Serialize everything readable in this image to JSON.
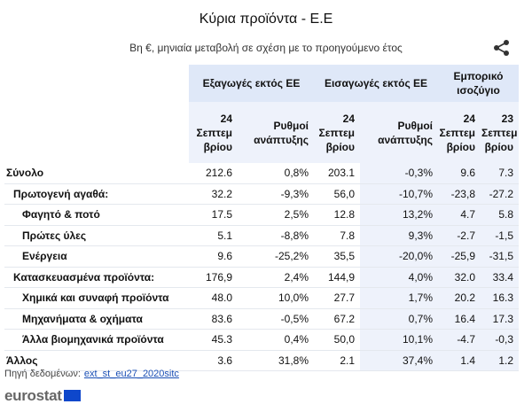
{
  "title": "Κύρια προϊόντα - Ε.Ε",
  "subtitle": "Βη €, μηνιαία μεταβολή σε σχέση με το προηγούμενο έτος",
  "share_icon": "share-icon",
  "headers": {
    "exports": "Εξαγωγές εκτός ΕΕ",
    "imports": "Εισαγωγές εκτός ΕΕ",
    "balance": "Εμπορικό ισοζύγιο",
    "sep24": "24 Σεπτεμ βρίου",
    "growth": "Ρυθμοί ανάπτυξης",
    "sep23": "23 Σεπτεμ βρίου"
  },
  "rows": [
    {
      "label": "Σύνολο",
      "level": 0,
      "values": [
        "212.6",
        "0,8%",
        "203.1",
        "-0,3%",
        "9.6",
        "7.3"
      ]
    },
    {
      "label": "Πρωτογενή αγαθά:",
      "level": 1,
      "values": [
        "32.2",
        "-9,3%",
        "56,0",
        "-10,7%",
        "-23,8",
        "-27.2"
      ]
    },
    {
      "label": "Φαγητό & ποτό",
      "level": 2,
      "values": [
        "17.5",
        "2,5%",
        "12.8",
        "13,2%",
        "4.7",
        "5.8"
      ]
    },
    {
      "label": "Πρώτες ύλες",
      "level": 2,
      "values": [
        "5.1",
        "-8,8%",
        "7.8",
        "9,3%",
        "-2.7",
        "-1,5"
      ]
    },
    {
      "label": "Ενέργεια",
      "level": 2,
      "values": [
        "9.6",
        "-25,2%",
        "35,5",
        "-20,0%",
        "-25,9",
        "-31,5"
      ]
    },
    {
      "label": "Κατασκευασμένα προϊόντα:",
      "level": 1,
      "values": [
        "176,9",
        "2,4%",
        "144,9",
        "4,0%",
        "32.0",
        "33.4"
      ]
    },
    {
      "label": "Χημικά και συναφή προϊόντα",
      "level": 2,
      "values": [
        "48.0",
        "10,0%",
        "27.7",
        "1,7%",
        "20.2",
        "16.3"
      ]
    },
    {
      "label": "Μηχανήματα & οχήματα",
      "level": 2,
      "values": [
        "83.6",
        "-0,5%",
        "67.2",
        "0,7%",
        "16.4",
        "17.3"
      ]
    },
    {
      "label": "Άλλα βιομηχανικά προϊόντα",
      "level": 2,
      "values": [
        "45.3",
        "0,4%",
        "50,0",
        "10,1%",
        "-4.7",
        "-0,3"
      ]
    },
    {
      "label": "Άλλος",
      "level": 0,
      "values": [
        "3.6",
        "31,8%",
        "2.1",
        "37,4%",
        "1.4",
        "1.2"
      ]
    }
  ],
  "source": {
    "label": "Πηγή δεδομένων:",
    "link": "ext_st_eu27_2020sitc"
  },
  "logo": {
    "text": "eurostat",
    "flag_icon": "eu-flag-icon"
  },
  "colors": {
    "header_dark": "#dfe8f8",
    "header_light": "#eef2fb",
    "link": "#1a4fb5",
    "flag": "#0e47cb"
  }
}
